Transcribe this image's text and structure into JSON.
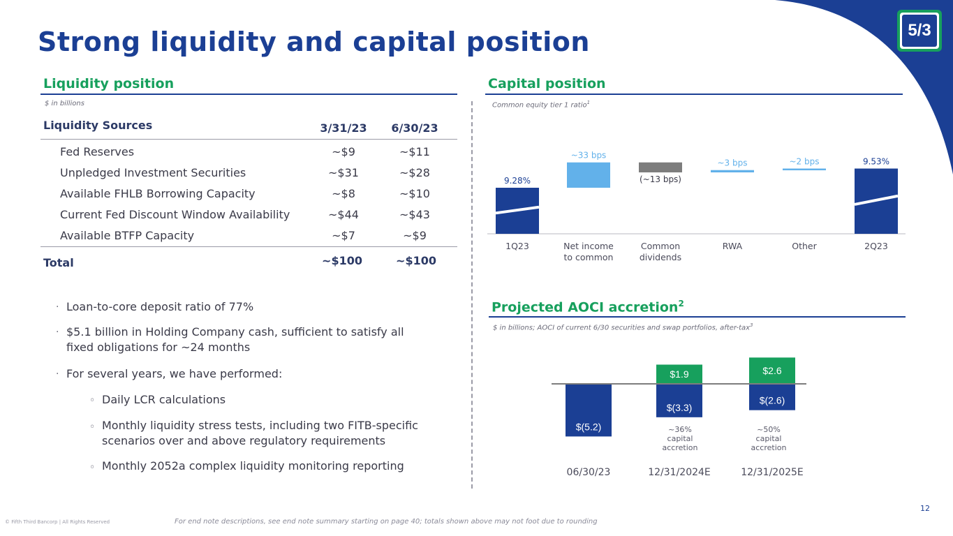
{
  "title": "Strong liquidity and capital position",
  "liquidity": {
    "heading": "Liquidity position",
    "note": "$ in billions",
    "columns": [
      "Liquidity Sources",
      "3/31/23",
      "6/30/23"
    ],
    "rows": [
      {
        "label": "Fed Reserves",
        "q1": "~$9",
        "q2": "~$11"
      },
      {
        "label": "Unpledged Investment Securities",
        "q1": "~$31",
        "q2": "~$28"
      },
      {
        "label": "Available FHLB Borrowing Capacity",
        "q1": "~$8",
        "q2": "~$10"
      },
      {
        "label": "Current Fed Discount Window Availability",
        "q1": "~$44",
        "q2": "~$43"
      },
      {
        "label": "Available BTFP Capacity",
        "q1": "~$7",
        "q2": "~$9"
      }
    ],
    "total": {
      "label": "Total",
      "q1": "~$100",
      "q2": "~$100"
    }
  },
  "bullets": {
    "b1": "Loan-to-core deposit ratio of 77%",
    "b2a": "$5.1 billion in Holding Company cash, sufficient to satisfy all",
    "b2b": "fixed obligations for ~24 months",
    "b3": "For several years, we have performed:",
    "s1": "Daily LCR calculations",
    "s2a": "Monthly liquidity stress tests, including two FITB-specific",
    "s2b": "scenarios over and above regulatory requirements",
    "s3": "Monthly 2052a complex liquidity monitoring reporting",
    "bullet_char": "·",
    "sub_char": "◦"
  },
  "capital": {
    "heading": "Capital position",
    "note": "Common equity tier 1 ratio",
    "note_sup": "1"
  },
  "aoci": {
    "heading": "Projected AOCI accretion",
    "heading_sup": "2",
    "note": "$ in billions; AOCI of current 6/30 securities and swap portfolios, after-tax",
    "note_sup": "3",
    "c2_note1": "~36%",
    "c2_note2": "capital",
    "c2_note3": "accretion",
    "c3_note1": "~50%",
    "c3_note2": "capital",
    "c3_note3": "accretion"
  },
  "chart_data": [
    {
      "type": "bar",
      "subtype": "waterfall",
      "title": "Capital position",
      "ylabel": "Common equity tier 1 ratio",
      "categories": [
        "1Q23",
        "Net income to common",
        "Common dividends",
        "RWA",
        "Other",
        "2Q23"
      ],
      "category_lines": [
        [
          "1Q23"
        ],
        [
          "Net income",
          "to common"
        ],
        [
          "Common",
          "dividends"
        ],
        [
          "RWA"
        ],
        [
          "Other"
        ],
        [
          "2Q23"
        ]
      ],
      "values": [
        9.28,
        0.33,
        -0.13,
        0.03,
        0.02,
        9.53
      ],
      "labels": [
        "9.28%",
        "~33 bps",
        "(~13 bps)",
        "~3 bps",
        "~2 bps",
        "9.53%"
      ],
      "colors": [
        "#1b3f94",
        "#62b1ea",
        "#7d7d7d",
        "#62b1ea",
        "#62b1ea",
        "#1b3f94"
      ]
    },
    {
      "type": "bar",
      "subtype": "stacked",
      "title": "Projected AOCI accretion",
      "categories": [
        "06/30/23",
        "12/31/2024E",
        "12/31/2025E"
      ],
      "series": [
        {
          "name": "AOCI",
          "values": [
            -5.2,
            -3.3,
            -2.6
          ],
          "labels": [
            "$(5.2)",
            "$(3.3)",
            "$(2.6)"
          ],
          "color": "#1b3f94"
        },
        {
          "name": "Accretion",
          "values": [
            0,
            1.9,
            2.6
          ],
          "labels": [
            "",
            "$1.9",
            "$2.6"
          ],
          "color": "#17a05d"
        }
      ]
    }
  ],
  "footer": {
    "copyright": "© Fifth Third Bancorp | All Rights Reserved",
    "endnote": "For end note descriptions, see end note summary starting on page 40; totals shown above may not foot due to rounding",
    "page": "12"
  },
  "logo": {
    "text": "5/3"
  },
  "colors": {
    "navy": "#1b3f94",
    "green": "#17a05d",
    "light_blue": "#62b1ea",
    "gray": "#7d7d7d"
  }
}
